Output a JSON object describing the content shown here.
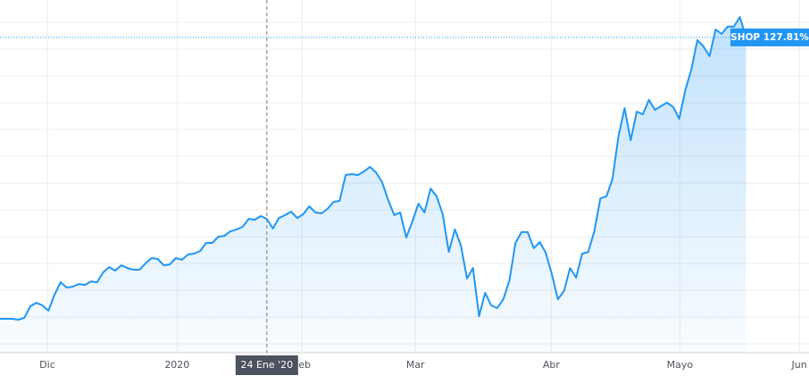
{
  "chart_data": {
    "type": "area",
    "series": [
      {
        "name": "SHOP",
        "color": "#2196f3",
        "values": [
          0,
          0,
          0,
          -0.4,
          0.4,
          5.7,
          7.3,
          6.1,
          3.7,
          11.0,
          16.6,
          14.2,
          14.6,
          15.8,
          15.4,
          17.0,
          16.6,
          21.1,
          23.5,
          21.9,
          24.3,
          23.1,
          22.3,
          22.3,
          25.2,
          27.6,
          27.2,
          24.3,
          24.7,
          27.6,
          26.8,
          29.2,
          29.6,
          30.8,
          34.5,
          34.5,
          37.3,
          37.7,
          39.8,
          40.6,
          41.8,
          45.4,
          45.0,
          46.7,
          45.4,
          41.0,
          45.8,
          47.1,
          48.7,
          45.8,
          47.5,
          51.1,
          48.3,
          47.9,
          49.9,
          53.1,
          53.6,
          65.3,
          65.7,
          65.3,
          66.9,
          69.0,
          66.5,
          62.1,
          54.0,
          47.1,
          48.3,
          36.9,
          44.2,
          52.3,
          48.3,
          59.2,
          55.6,
          47.5,
          30.4,
          40.6,
          33.3,
          18.3,
          23.1,
          1.2,
          11.8,
          6.1,
          4.9,
          8.9,
          17.4,
          34.5,
          39.4,
          39.4,
          32.1,
          34.9,
          30.0,
          20.3,
          8.9,
          12.6,
          23.1,
          18.7,
          29.6,
          30.4,
          39.8,
          54.8,
          55.6,
          63.7,
          83.2,
          95.7,
          81.1,
          94.1,
          92.9,
          99.4,
          94.9,
          96.6,
          98.2,
          96.2,
          90.9,
          103.9,
          113.2,
          126.6,
          123.7,
          119.3,
          131.4,
          129.4,
          132.7,
          132.7,
          137.1,
          127.81
        ]
      }
    ],
    "xlim": [
      0,
      133.4
    ],
    "ylim": [
      -15.4,
      144.8
    ],
    "xticks": [
      {
        "value": 7.8,
        "label": "Dic"
      },
      {
        "value": 29.2,
        "label": "2020"
      },
      {
        "value": 49.8,
        "label": "Feb"
      },
      {
        "value": 68.5,
        "label": "Mar"
      },
      {
        "value": 90.9,
        "label": "Abr"
      },
      {
        "value": 112.1,
        "label": "Mayo"
      },
      {
        "value": 131.8,
        "label": "Jun"
      }
    ],
    "crosshair": {
      "value": 44.0,
      "label": "24 Ene '20"
    },
    "price_label": {
      "value": 127.81,
      "label": "SHOP 127.81%"
    },
    "grid": true
  }
}
